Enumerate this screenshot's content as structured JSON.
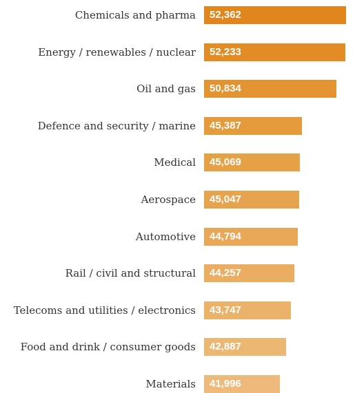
{
  "chart_data": {
    "type": "bar",
    "orientation": "horizontal",
    "categories": [
      "Chemicals and pharma",
      "Energy / renewables / nuclear",
      "Oil and gas",
      "Defence and security / marine",
      "Medical",
      "Aerospace",
      "Automotive",
      "Rail / civil and structural",
      "Telecoms and utilities / electronics",
      "Food and drink / consumer goods",
      "Materials"
    ],
    "values": [
      52362,
      52233,
      50834,
      45387,
      45069,
      45047,
      44794,
      44257,
      43747,
      42887,
      41996
    ],
    "value_labels": [
      "52,362",
      "52,233",
      "50,834",
      "45,387",
      "45,069",
      "45,047",
      "44,794",
      "44,257",
      "43,747",
      "42,887",
      "41,996"
    ],
    "colors": [
      "#e0861c",
      "#e28c26",
      "#e39331",
      "#e59a3c",
      "#e6a046",
      "#e7a44e",
      "#e9a858",
      "#eaad61",
      "#ebb26a",
      "#ecb673",
      "#edba7b"
    ],
    "xlim": [
      30000,
      53700
    ],
    "title": "",
    "xlabel": "",
    "ylabel": ""
  }
}
